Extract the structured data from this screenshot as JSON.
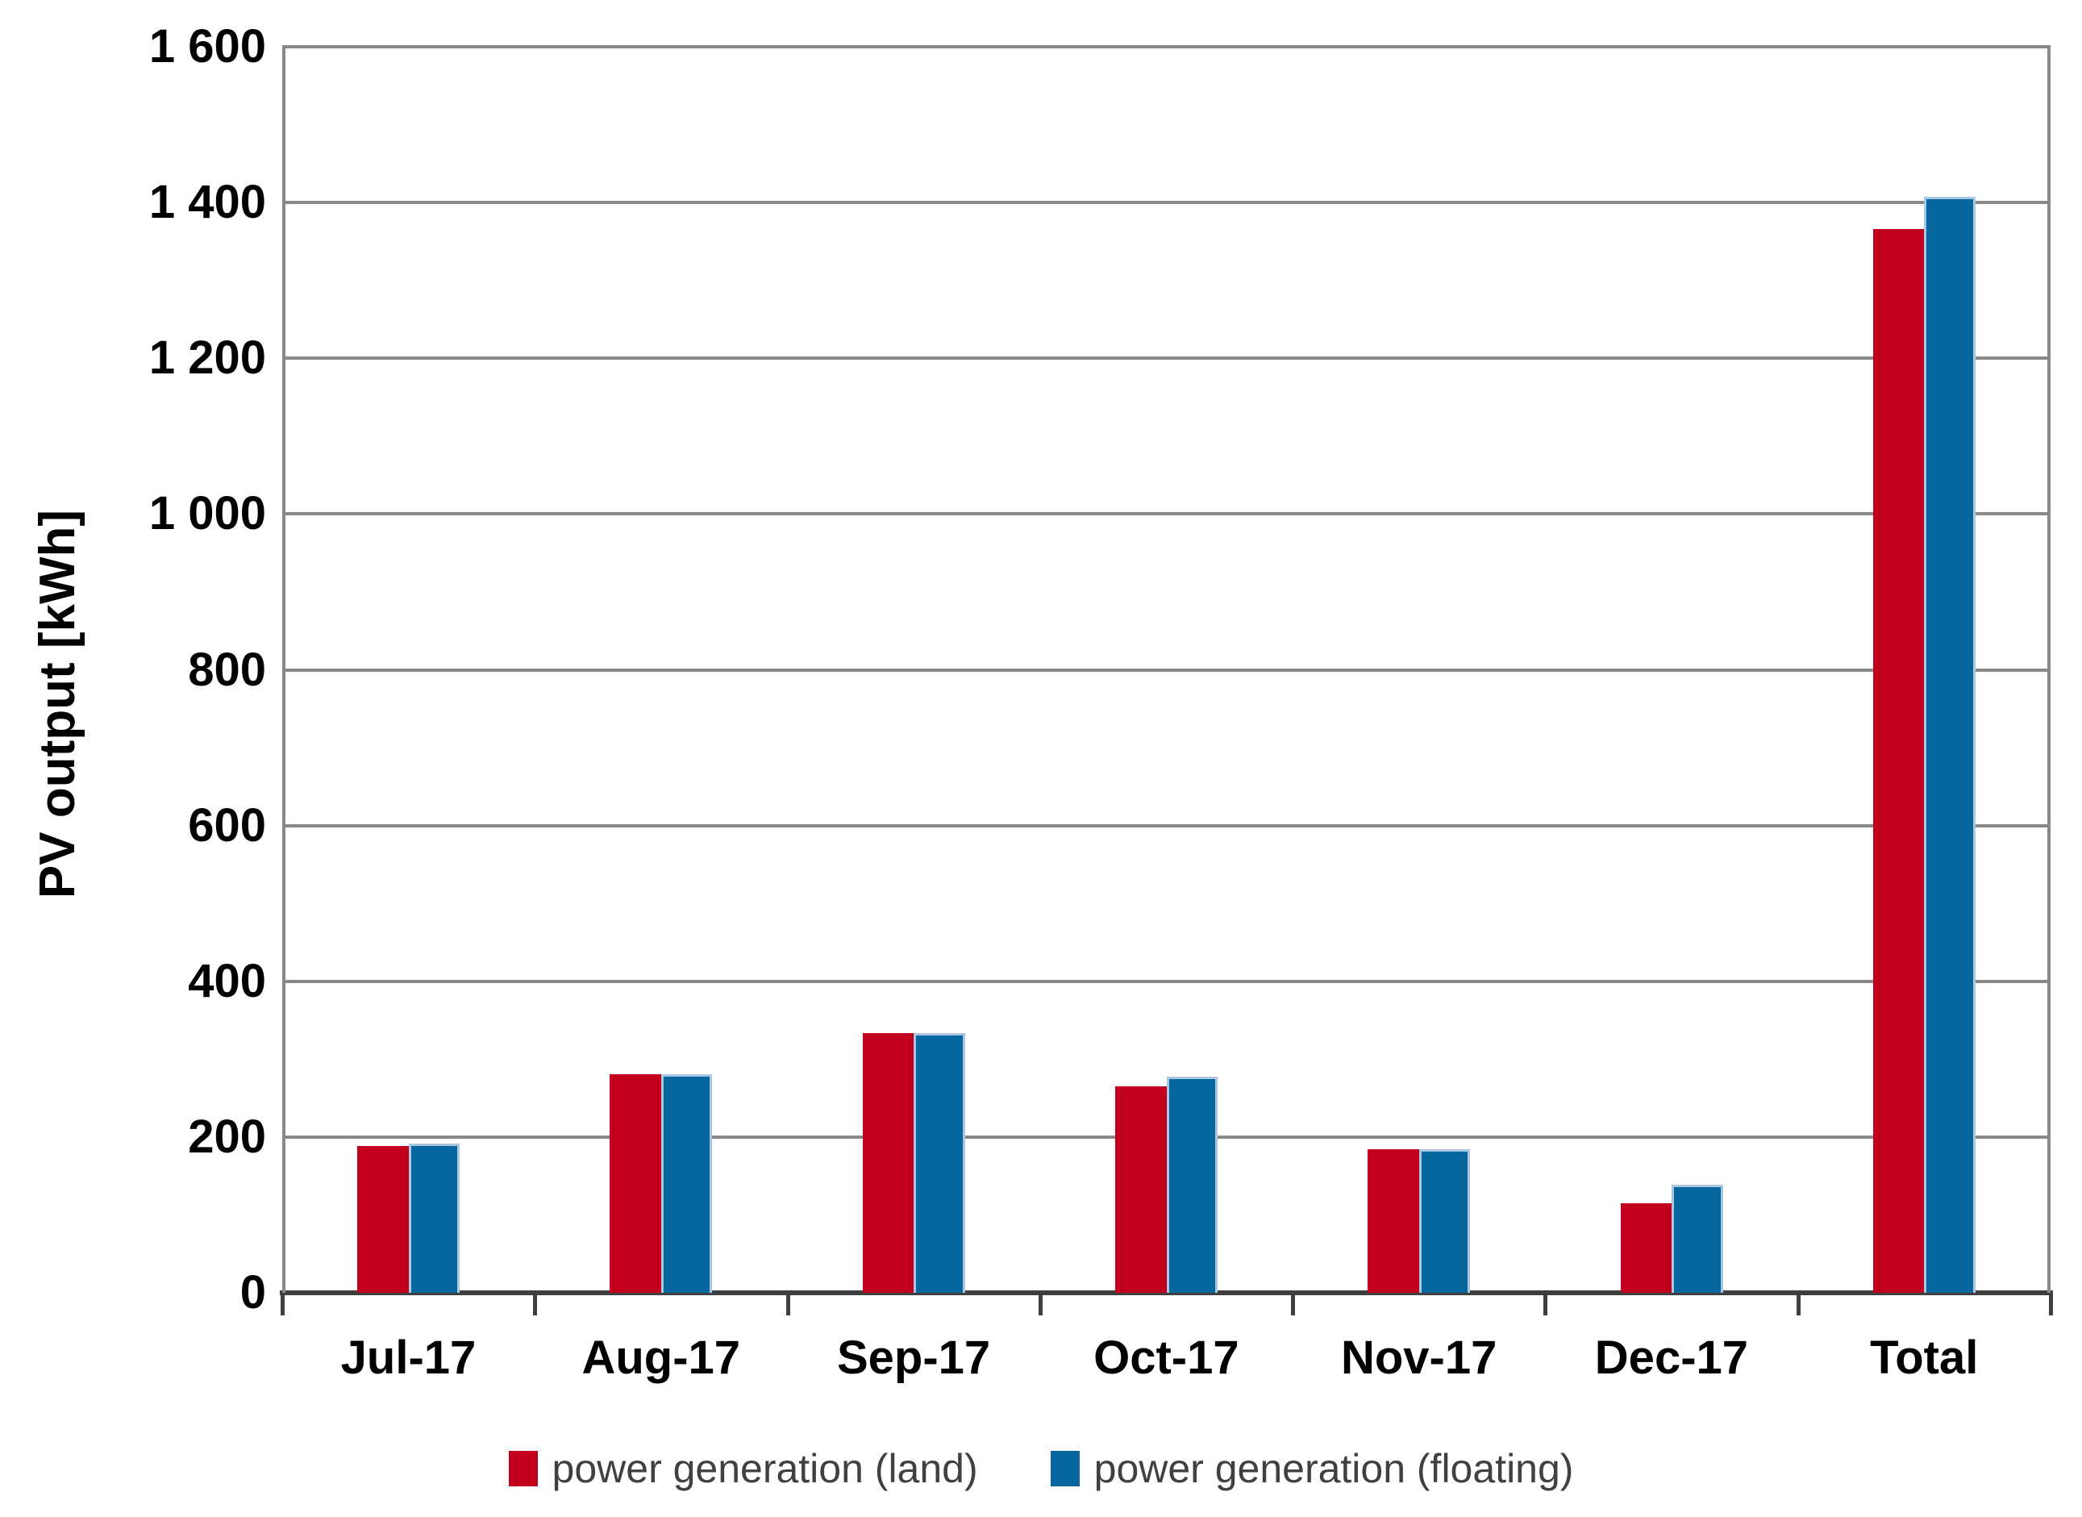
{
  "chart_data": {
    "type": "bar",
    "title": "",
    "xlabel": "",
    "ylabel": "PV output [kWh]",
    "categories": [
      "Jul-17",
      "Aug-17",
      "Sep-17",
      "Oct-17",
      "Nov-17",
      "Dec-17",
      "Total"
    ],
    "series": [
      {
        "name": "power generation (land)",
        "color": "#c2001e",
        "values": [
          188,
          281,
          333,
          265,
          184,
          115,
          1366
        ]
      },
      {
        "name": "power generation (floating)",
        "color": "#06669e",
        "values": [
          192,
          281,
          333,
          278,
          184,
          139,
          1407
        ]
      }
    ],
    "ylim": [
      0,
      1600
    ],
    "ytick_step": 200,
    "ytick_labels": [
      "0",
      "200",
      "400",
      "600",
      "800",
      "1 000",
      "1 200",
      "1 400",
      "1 600"
    ],
    "grid": true,
    "legend_position": "bottom"
  },
  "colors": {
    "background": "#ffffff",
    "gridline": "#898989",
    "axis": "#3f3f3f",
    "tick_label_text": "#000000",
    "legend_text": "#404040",
    "floating_bar_border": "#a9c7e0"
  }
}
